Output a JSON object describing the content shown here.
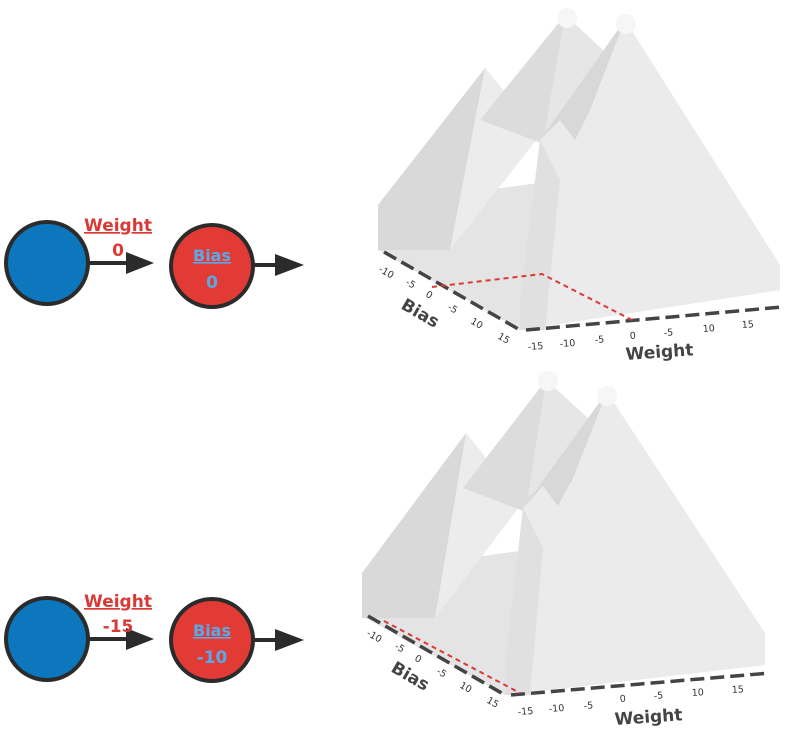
{
  "colors": {
    "input_node": "#0d77bd",
    "bias_node": "#e23b36",
    "node_stroke": "#2b2b2b",
    "weight_text": "#d93a36",
    "bias_text": "#5aa9e6",
    "arrow": "#2b2b2b",
    "axis": "#444444",
    "marker": "#d93a36",
    "terrain_light": "#ececec",
    "terrain_mid": "#e2e2e2",
    "terrain_dark": "#d6d6d6"
  },
  "panels": [
    {
      "weight_label": "Weight",
      "weight_value": "0",
      "bias_label": "Bias",
      "bias_value": "0",
      "bias_axis_label": "Bias",
      "weight_axis_label": "Weight",
      "bias_ticks": [
        "-10",
        "-5",
        "0",
        "-5",
        "10",
        "15"
      ],
      "weight_ticks": [
        "-15",
        "-10",
        "-5",
        "0",
        "-5",
        "10",
        "15"
      ]
    },
    {
      "weight_label": "Weight",
      "weight_value": "-15",
      "bias_label": "Bias",
      "bias_value": "-10",
      "bias_axis_label": "Bias",
      "weight_axis_label": "Weight",
      "bias_ticks": [
        "-10",
        "-5",
        "0",
        "-5",
        "10",
        "15"
      ],
      "weight_ticks": [
        "-15",
        "-10",
        "-5",
        "0",
        "-5",
        "10",
        "15"
      ]
    }
  ]
}
